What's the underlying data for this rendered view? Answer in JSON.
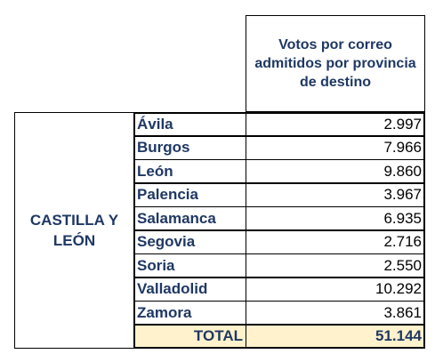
{
  "header": {
    "column_title": "Votos por correo admitidos por provincia de destino"
  },
  "region": {
    "name": "CASTILLA Y LEÓN"
  },
  "rows": [
    {
      "province": "Ávila",
      "votes": "2.997"
    },
    {
      "province": "Burgos",
      "votes": "7.966"
    },
    {
      "province": "León",
      "votes": "9.860"
    },
    {
      "province": "Palencia",
      "votes": "3.967"
    },
    {
      "province": "Salamanca",
      "votes": "6.935"
    },
    {
      "province": "Segovia",
      "votes": "2.716"
    },
    {
      "province": "Soria",
      "votes": "2.550"
    },
    {
      "province": "Valladolid",
      "votes": "10.292"
    },
    {
      "province": "Zamora",
      "votes": "3.861"
    }
  ],
  "total": {
    "label": "TOTAL",
    "votes": "51.144"
  },
  "colors": {
    "text_blue": "#1f3864",
    "total_fill": "#fff2cc"
  }
}
